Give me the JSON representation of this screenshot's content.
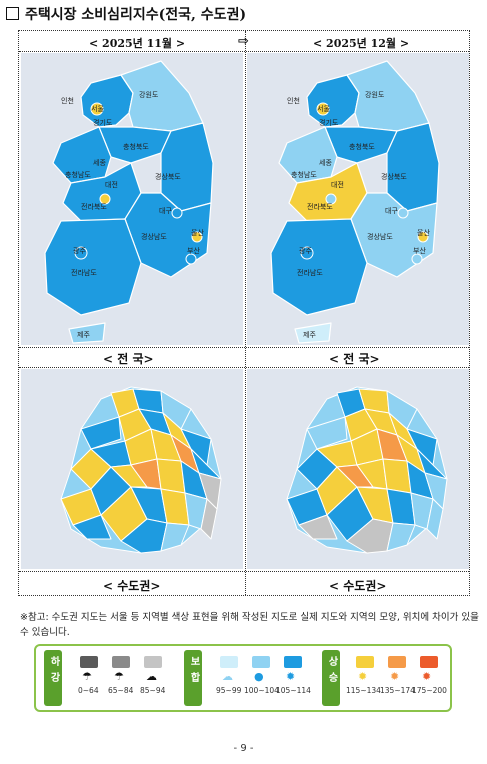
{
  "title": "주택시장 소비심리지수(전국, 수도권)",
  "col_left": "< 2025년 11월 >",
  "col_right": "< 2025년 12월 >",
  "arrow": "⇨",
  "cap_national": "< 전 국>",
  "cap_metro": "< 수도권>",
  "regions": {
    "incheon": "인천",
    "seoul": "서울",
    "gyeonggi": "경기도",
    "gangwon": "강원도",
    "chungbuk": "충청북도",
    "sejong": "세종",
    "chungnam": "충청남도",
    "daejeon": "대전",
    "gyeongbuk": "경상북도",
    "daegu": "대구",
    "jeonbuk": "전라북도",
    "ulsan": "울산",
    "gyeongnam": "경상남도",
    "busan": "부산",
    "gwangju": "광주",
    "jeonnam": "전라남도",
    "jeju": "제주"
  },
  "note": "※참고: 수도권 지도는 서울 등 지역별 색상 표현을 위해 작성된 지도로 실제 지도와 지역의 모양, 위치에 차이가 있을 수 있습니다.",
  "legend": {
    "groups": [
      {
        "label": "하강",
        "color": "#5aa02c",
        "items": [
          {
            "range": "0~64",
            "color": "#5a5a5a"
          },
          {
            "range": "65~84",
            "color": "#8a8a8a"
          },
          {
            "range": "85~94",
            "color": "#c4c4c4"
          }
        ]
      },
      {
        "label": "보합",
        "color": "#5aa02c",
        "items": [
          {
            "range": "95~99",
            "color": "#cfeefa"
          },
          {
            "range": "100~104",
            "color": "#8fd2f2"
          },
          {
            "range": "105~114",
            "color": "#1e9be0"
          }
        ]
      },
      {
        "label": "상승",
        "color": "#5aa02c",
        "items": [
          {
            "range": "115~134",
            "color": "#f5cf3c"
          },
          {
            "range": "135~174",
            "color": "#f59a48"
          },
          {
            "range": "175~200",
            "color": "#ec5b2b"
          }
        ]
      }
    ]
  },
  "page_number": "- 9 -",
  "colors": {
    "sea": "#dfe5ee",
    "blue": "#1e9be0",
    "lightblue": "#8fd2f2",
    "palest": "#cfeefa",
    "yellow": "#f5cf3c",
    "orange": "#f59a48",
    "gray": "#c4c4c4"
  }
}
